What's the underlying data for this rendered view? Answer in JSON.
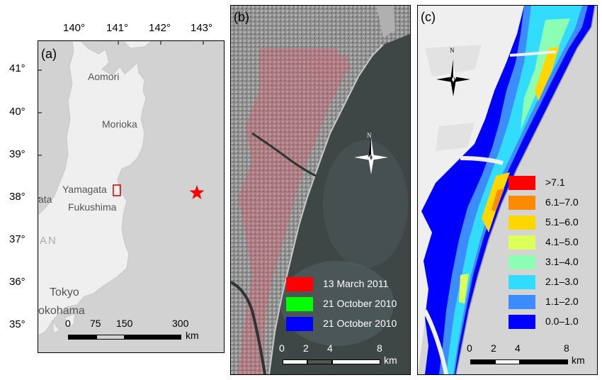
{
  "panel_a": {
    "label": "(a)",
    "lon_ticks": [
      "140°",
      "141°",
      "142°",
      "143°"
    ],
    "lat_ticks": [
      "41°",
      "40°",
      "39°",
      "38°",
      "37°",
      "36°",
      "35°"
    ],
    "cities": [
      "Aomori",
      "Morioka",
      "Yamagata",
      "Fukushima",
      "ata",
      "AN",
      "Tokyo",
      "okohama"
    ],
    "scale_labels": [
      "0",
      "75",
      "150",
      "300"
    ],
    "scale_unit": "km",
    "colors": {
      "land": "#efefef",
      "sea": "#d2d2d2",
      "star": "#ff0000",
      "box": "#cc0000"
    }
  },
  "panel_b": {
    "label": "(b)",
    "legend": [
      {
        "text": "13 March 2011",
        "color": "#ff0000"
      },
      {
        "text": "21 October 2010",
        "color": "#00ff00"
      },
      {
        "text": "21 October 2010",
        "color": "#0000ff"
      }
    ],
    "scale_labels": [
      "0",
      "2",
      "4",
      "8"
    ],
    "scale_unit": "km",
    "north": "N"
  },
  "panel_c": {
    "label": "(c)",
    "legend": [
      {
        "text": ">7.1",
        "color": "#ff0000"
      },
      {
        "text": "6.1–7.0",
        "color": "#ff8c00"
      },
      {
        "text": "5.1–6.0",
        "color": "#ffd700"
      },
      {
        "text": "4.1–5.0",
        "color": "#dcff5a"
      },
      {
        "text": "3.1–4.0",
        "color": "#8cffb4"
      },
      {
        "text": "2.1–3.0",
        "color": "#32dcff"
      },
      {
        "text": "1.1–2.0",
        "color": "#3c8cff"
      },
      {
        "text": "0.0–1.0",
        "color": "#0000ff"
      }
    ],
    "scale_labels": [
      "0",
      "2",
      "4",
      "8"
    ],
    "scale_unit": "km",
    "north": "N"
  }
}
